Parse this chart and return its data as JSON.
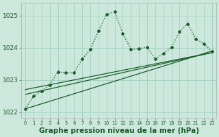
{
  "background_color": "#cce8dd",
  "grid_color": "#99ccbb",
  "line_color": "#1a5c28",
  "xlabel": "Graphe pression niveau de la mer (hPa)",
  "xlabel_fontsize": 7.5,
  "ylabel_ticks": [
    1022,
    1023,
    1024,
    1025
  ],
  "xlim": [
    -0.5,
    23.5
  ],
  "ylim": [
    1021.8,
    1025.4
  ],
  "x_ticks": [
    0,
    1,
    2,
    3,
    4,
    5,
    6,
    7,
    8,
    9,
    10,
    11,
    12,
    13,
    14,
    15,
    16,
    17,
    18,
    19,
    20,
    21,
    22,
    23
  ],
  "linear_lines": [
    {
      "x0": 0,
      "y0": 1022.1,
      "x1": 23,
      "y1": 1023.9
    },
    {
      "x0": 0,
      "y0": 1022.55,
      "x1": 23,
      "y1": 1023.85
    },
    {
      "x0": 0,
      "y0": 1022.7,
      "x1": 23,
      "y1": 1023.85
    }
  ],
  "main_x": [
    0,
    1,
    2,
    3,
    4,
    5,
    6,
    7,
    8,
    9,
    10,
    11,
    12,
    13,
    14,
    15,
    16,
    17,
    18,
    19,
    20,
    21,
    22,
    23
  ],
  "main_y": [
    1022.1,
    1022.5,
    1022.65,
    1022.85,
    1023.25,
    1023.22,
    1023.22,
    1023.65,
    1023.95,
    1024.52,
    1025.05,
    1025.12,
    1024.45,
    1023.95,
    1023.97,
    1024.02,
    1023.65,
    1023.82,
    1024.02,
    1024.5,
    1024.75,
    1024.27,
    1024.12,
    1023.88
  ]
}
